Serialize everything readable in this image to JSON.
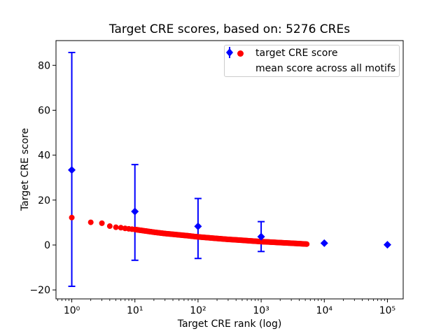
{
  "chart": {
    "title": "Target CRE scores, based on: 5276 CREs",
    "xlabel": "Target CRE rank (log)",
    "ylabel": "Target CRE score",
    "n_cres": 5276,
    "colors": {
      "target_series": "#ff0000",
      "mean_series": "#0000ff",
      "axis": "#000000",
      "legend_border": "#cccccc",
      "background": "#ffffff"
    }
  },
  "chart_data": {
    "type": "scatter",
    "title": "Target CRE scores, based on: 5276 CREs",
    "xlabel": "Target CRE rank (log)",
    "ylabel": "Target CRE score",
    "x_scale": "log",
    "xlim_log10": [
      -0.25,
      5.25
    ],
    "ylim": [
      -24,
      91
    ],
    "grid": false,
    "x_ticks": {
      "exponents": [
        0,
        1,
        2,
        3,
        4,
        5
      ],
      "labels": [
        "10⁰",
        "10¹",
        "10²",
        "10³",
        "10⁴",
        "10⁵"
      ]
    },
    "y_ticks": {
      "values": [
        -20,
        0,
        20,
        40,
        60,
        80
      ],
      "labels": [
        "−20",
        "0",
        "20",
        "40",
        "60",
        "80"
      ]
    },
    "legend": {
      "position": "upper right",
      "items": [
        {
          "label": "target CRE score",
          "marker": "circle",
          "color": "#ff0000"
        },
        {
          "label": "mean score across all motifs",
          "marker": "diamond-errorbar",
          "color": "#0000ff"
        }
      ]
    },
    "series": [
      {
        "name": "target CRE score",
        "type": "dense-scatter",
        "marker": "circle",
        "color": "#ff0000",
        "note": "one dot per rank 1..5276; anchor points [rank, score] below, log-interpolated",
        "points": [
          [
            1,
            12.2
          ],
          [
            2,
            10.1
          ],
          [
            3,
            9.7
          ],
          [
            4,
            8.4
          ],
          [
            5,
            7.9
          ],
          [
            6,
            7.7
          ],
          [
            7,
            7.4
          ],
          [
            8,
            7.2
          ],
          [
            10,
            6.9
          ],
          [
            15,
            6.2
          ],
          [
            20,
            5.7
          ],
          [
            30,
            5.1
          ],
          [
            50,
            4.5
          ],
          [
            70,
            4.1
          ],
          [
            100,
            3.6
          ],
          [
            150,
            3.2
          ],
          [
            200,
            2.9
          ],
          [
            300,
            2.5
          ],
          [
            500,
            2.1
          ],
          [
            700,
            1.8
          ],
          [
            1000,
            1.5
          ],
          [
            1500,
            1.25
          ],
          [
            2000,
            1.05
          ],
          [
            3000,
            0.8
          ],
          [
            4000,
            0.6
          ],
          [
            5276,
            0.4
          ]
        ]
      },
      {
        "name": "mean score across all motifs",
        "type": "errorbar",
        "marker": "diamond",
        "color": "#0000ff",
        "points": [
          {
            "x": 1,
            "y": 33.4,
            "ylo": -18.4,
            "yhi": 85.7
          },
          {
            "x": 10,
            "y": 14.9,
            "ylo": -6.8,
            "yhi": 35.8
          },
          {
            "x": 100,
            "y": 8.3,
            "ylo": -6.0,
            "yhi": 20.7
          },
          {
            "x": 1000,
            "y": 3.7,
            "ylo": -2.9,
            "yhi": 10.4
          },
          {
            "x": 10000,
            "y": 0.8
          },
          {
            "x": 100000,
            "y": 0.1
          }
        ]
      }
    ]
  }
}
